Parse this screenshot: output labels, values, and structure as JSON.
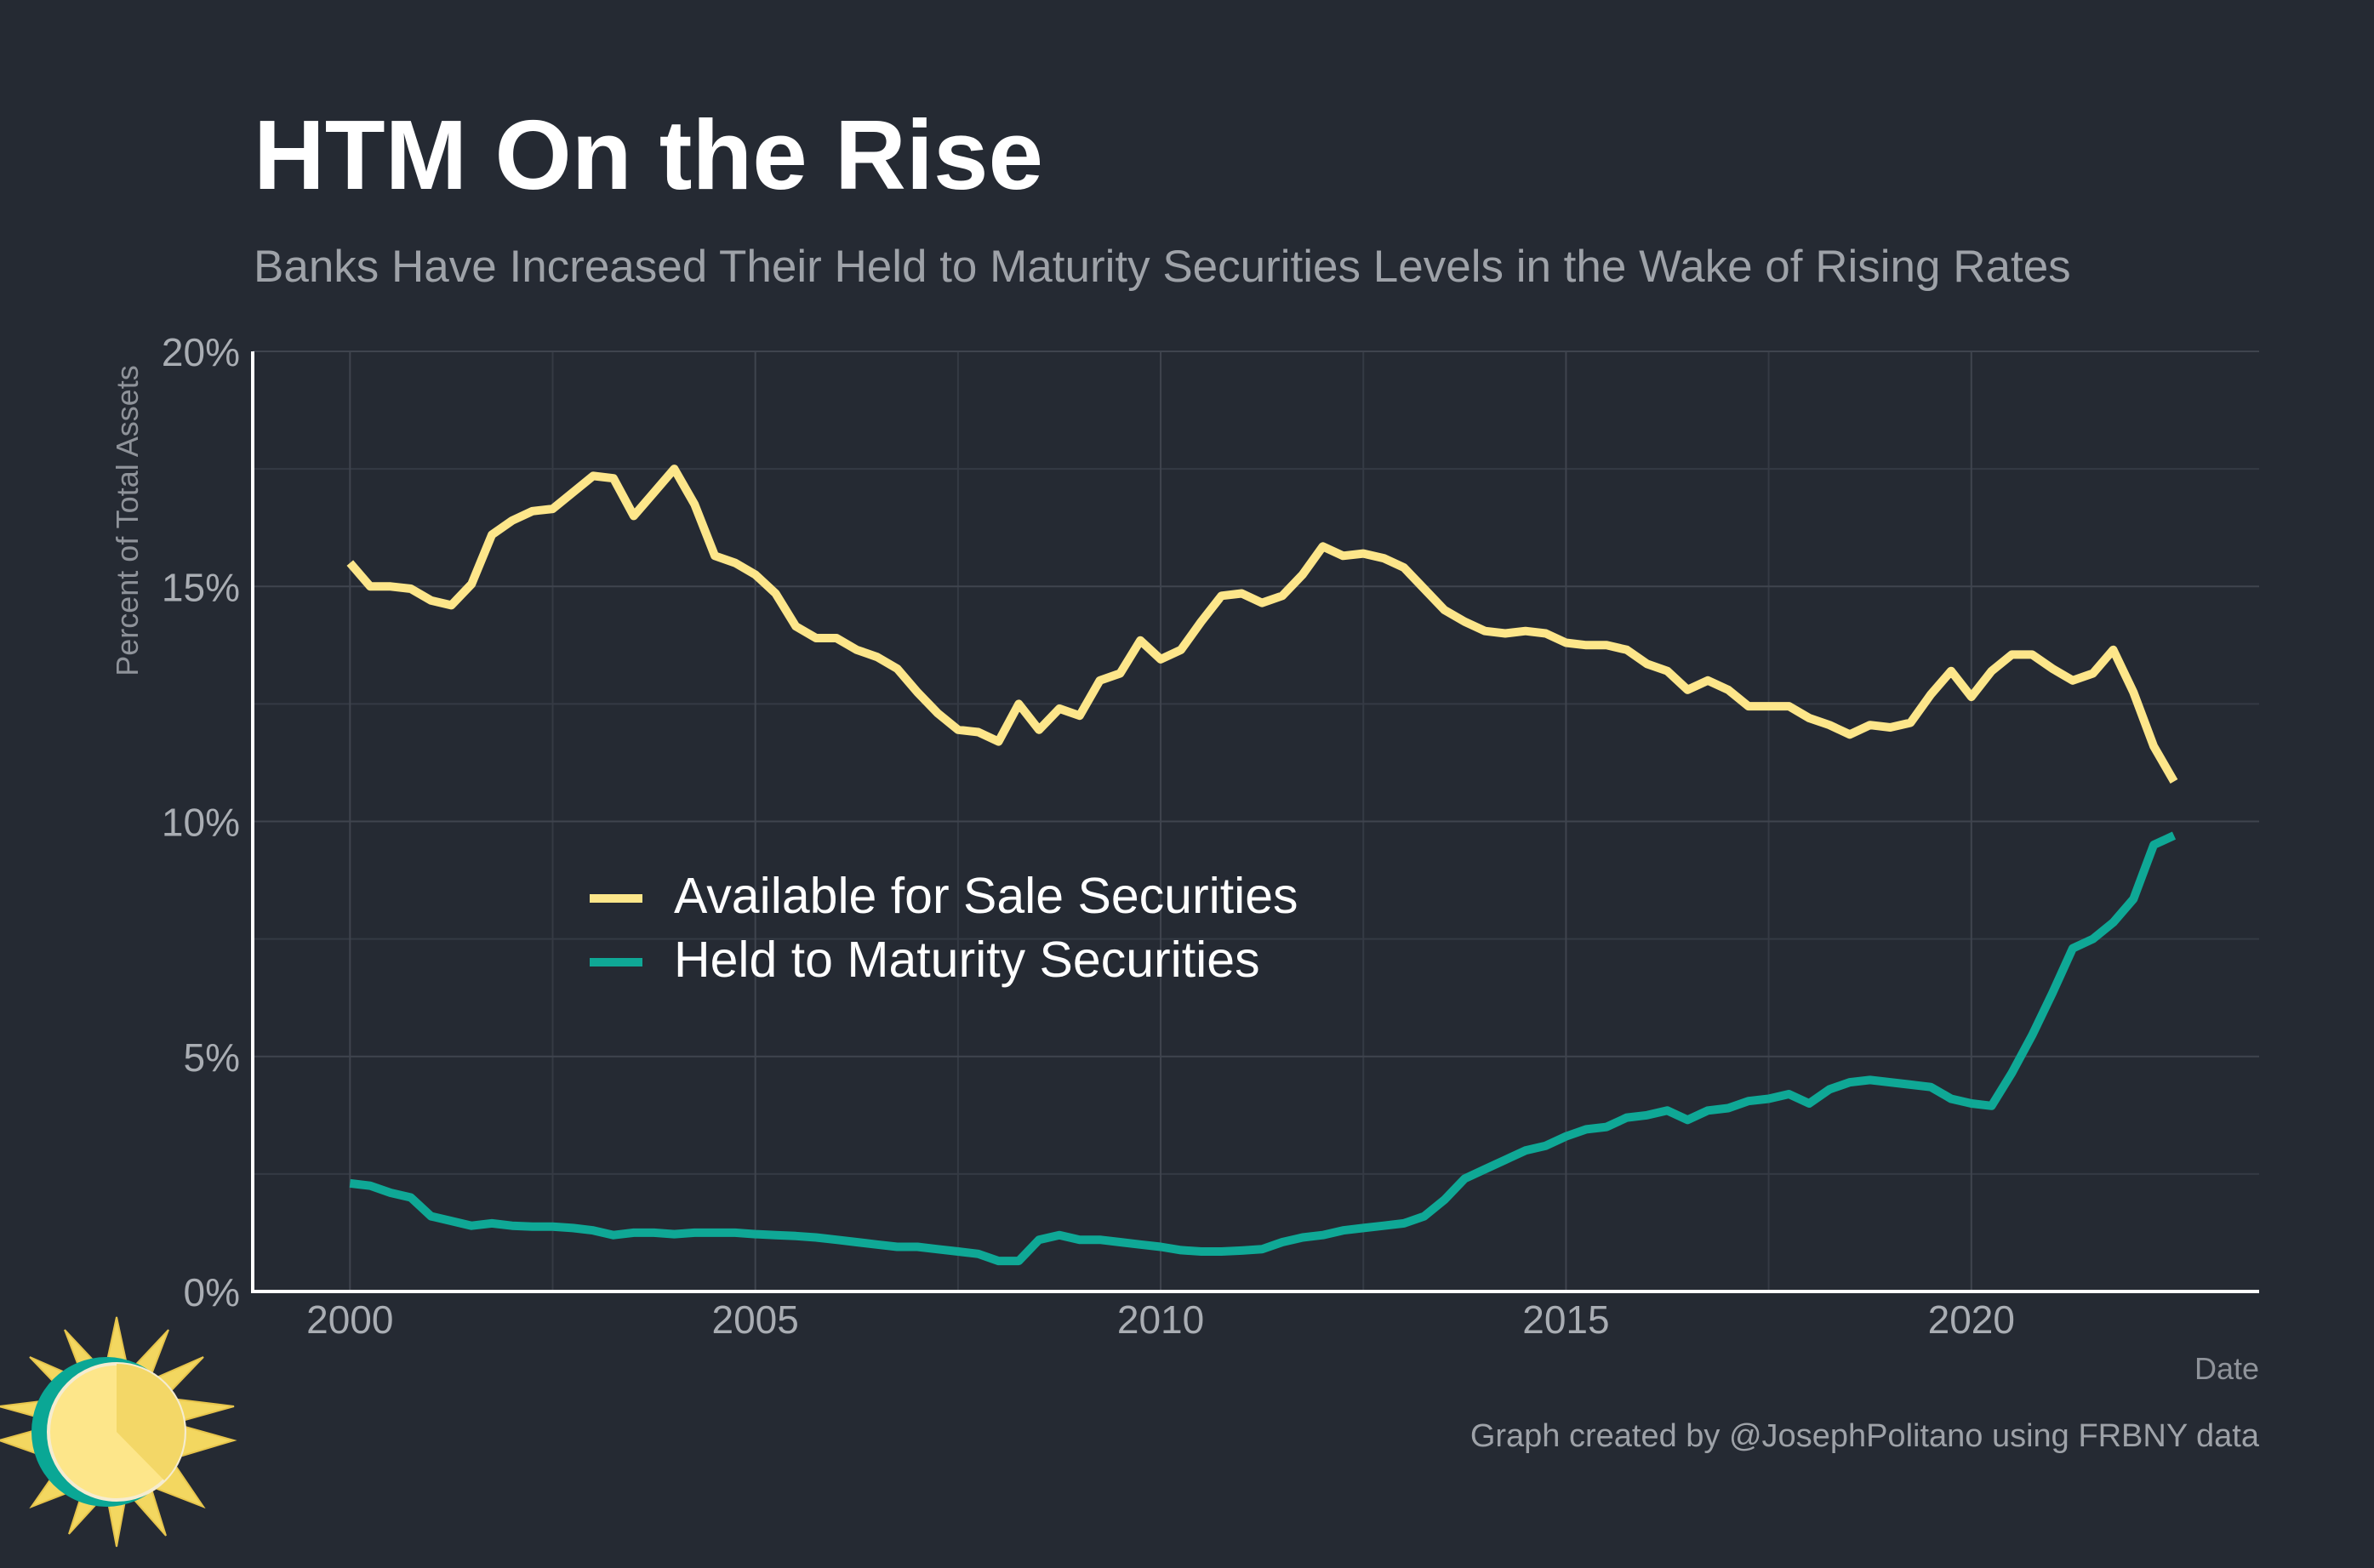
{
  "chart_data": {
    "type": "line",
    "title": "HTM On the Rise",
    "subtitle": "Banks Have Increased Their Held to Maturity Securities Levels in the Wake of Rising Rates",
    "xlabel": "Date",
    "ylabel": "Percent of Total Assets",
    "xlim": [
      1998.8,
      2023.55
    ],
    "ylim": [
      0,
      20
    ],
    "x_ticks": [
      2000,
      2005,
      2010,
      2015,
      2020
    ],
    "x_tick_labels": [
      "2000",
      "2005",
      "2010",
      "2015",
      "2020"
    ],
    "y_ticks": [
      0,
      5,
      10,
      15,
      20
    ],
    "y_tick_labels": [
      "0%",
      "5%",
      "10%",
      "15%",
      "20%"
    ],
    "grid": true,
    "legend_position": "center-left",
    "caption": "Graph created by @JosephPolitano using FRBNY data",
    "series": [
      {
        "name": "Available for Sale Securities",
        "color": "#fde68a",
        "x": [
          2000.0,
          2000.25,
          2000.5,
          2000.75,
          2001.0,
          2001.25,
          2001.5,
          2001.75,
          2002.0,
          2002.25,
          2002.5,
          2002.75,
          2003.0,
          2003.25,
          2003.5,
          2003.75,
          2004.0,
          2004.25,
          2004.5,
          2004.75,
          2005.0,
          2005.25,
          2005.5,
          2005.75,
          2006.0,
          2006.25,
          2006.5,
          2006.75,
          2007.0,
          2007.25,
          2007.5,
          2007.75,
          2008.0,
          2008.25,
          2008.5,
          2008.75,
          2009.0,
          2009.25,
          2009.5,
          2009.75,
          2010.0,
          2010.25,
          2010.5,
          2010.75,
          2011.0,
          2011.25,
          2011.5,
          2011.75,
          2012.0,
          2012.25,
          2012.5,
          2012.75,
          2013.0,
          2013.25,
          2013.5,
          2013.75,
          2014.0,
          2014.25,
          2014.5,
          2014.75,
          2015.0,
          2015.25,
          2015.5,
          2015.75,
          2016.0,
          2016.25,
          2016.5,
          2016.75,
          2017.0,
          2017.25,
          2017.5,
          2017.75,
          2018.0,
          2018.25,
          2018.5,
          2018.75,
          2019.0,
          2019.25,
          2019.5,
          2019.75,
          2020.0,
          2020.25,
          2020.5,
          2020.75,
          2021.0,
          2021.25,
          2021.5,
          2021.75,
          2022.0,
          2022.25,
          2022.5
        ],
        "values": [
          15.5,
          15.0,
          15.0,
          14.95,
          14.7,
          14.6,
          15.05,
          16.1,
          16.4,
          16.6,
          16.65,
          17.0,
          17.35,
          17.3,
          16.5,
          17.0,
          17.5,
          16.75,
          15.65,
          15.5,
          15.25,
          14.85,
          14.15,
          13.9,
          13.9,
          13.65,
          13.5,
          13.25,
          12.75,
          12.3,
          11.95,
          11.9,
          11.7,
          12.5,
          11.95,
          12.4,
          12.25,
          13.0,
          13.15,
          13.85,
          13.45,
          13.65,
          14.25,
          14.8,
          14.85,
          14.65,
          14.8,
          15.25,
          15.85,
          15.65,
          15.7,
          15.6,
          15.4,
          14.95,
          14.5,
          14.25,
          14.05,
          14.0,
          14.05,
          14.0,
          13.8,
          13.75,
          13.75,
          13.65,
          13.35,
          13.2,
          12.8,
          13.0,
          12.8,
          12.45,
          12.45,
          12.45,
          12.2,
          12.05,
          11.85,
          12.05,
          12.0,
          12.1,
          12.7,
          13.2,
          12.65,
          13.2,
          13.55,
          13.55,
          13.25,
          13.0,
          13.15,
          13.65,
          12.75,
          11.6,
          10.85
        ]
      },
      {
        "name": "Held to Maturity Securities",
        "color": "#0fa896",
        "x": [
          2000.0,
          2000.25,
          2000.5,
          2000.75,
          2001.0,
          2001.25,
          2001.5,
          2001.75,
          2002.0,
          2002.25,
          2002.5,
          2002.75,
          2003.0,
          2003.25,
          2003.5,
          2003.75,
          2004.0,
          2004.25,
          2004.5,
          2004.75,
          2005.0,
          2005.25,
          2005.5,
          2005.75,
          2006.0,
          2006.25,
          2006.5,
          2006.75,
          2007.0,
          2007.25,
          2007.5,
          2007.75,
          2008.0,
          2008.25,
          2008.5,
          2008.75,
          2009.0,
          2009.25,
          2009.5,
          2009.75,
          2010.0,
          2010.25,
          2010.5,
          2010.75,
          2011.0,
          2011.25,
          2011.5,
          2011.75,
          2012.0,
          2012.25,
          2012.5,
          2012.75,
          2013.0,
          2013.25,
          2013.5,
          2013.75,
          2014.0,
          2014.25,
          2014.5,
          2014.75,
          2015.0,
          2015.25,
          2015.5,
          2015.75,
          2016.0,
          2016.25,
          2016.5,
          2016.75,
          2017.0,
          2017.25,
          2017.5,
          2017.75,
          2018.0,
          2018.25,
          2018.5,
          2018.75,
          2019.0,
          2019.25,
          2019.5,
          2019.75,
          2020.0,
          2020.25,
          2020.5,
          2020.75,
          2021.0,
          2021.25,
          2021.5,
          2021.75,
          2022.0,
          2022.25,
          2022.5
        ],
        "values": [
          2.3,
          2.25,
          2.1,
          2.0,
          1.6,
          1.5,
          1.4,
          1.45,
          1.4,
          1.38,
          1.38,
          1.35,
          1.3,
          1.2,
          1.25,
          1.25,
          1.22,
          1.25,
          1.25,
          1.25,
          1.22,
          1.2,
          1.18,
          1.15,
          1.1,
          1.05,
          1.0,
          0.95,
          0.95,
          0.9,
          0.85,
          0.8,
          0.65,
          0.65,
          1.1,
          1.2,
          1.1,
          1.1,
          1.05,
          1.0,
          0.95,
          0.88,
          0.85,
          0.85,
          0.87,
          0.9,
          1.05,
          1.15,
          1.2,
          1.3,
          1.35,
          1.4,
          1.45,
          1.6,
          1.95,
          2.4,
          2.6,
          2.8,
          3.0,
          3.1,
          3.3,
          3.45,
          3.5,
          3.7,
          3.75,
          3.85,
          3.65,
          3.85,
          3.9,
          4.05,
          4.1,
          4.2,
          4.0,
          4.3,
          4.45,
          4.5,
          4.45,
          4.4,
          4.35,
          4.1,
          4.0,
          3.95,
          4.65,
          5.45,
          6.35,
          7.3,
          7.5,
          7.85,
          8.35,
          9.5,
          9.7
        ]
      }
    ]
  }
}
